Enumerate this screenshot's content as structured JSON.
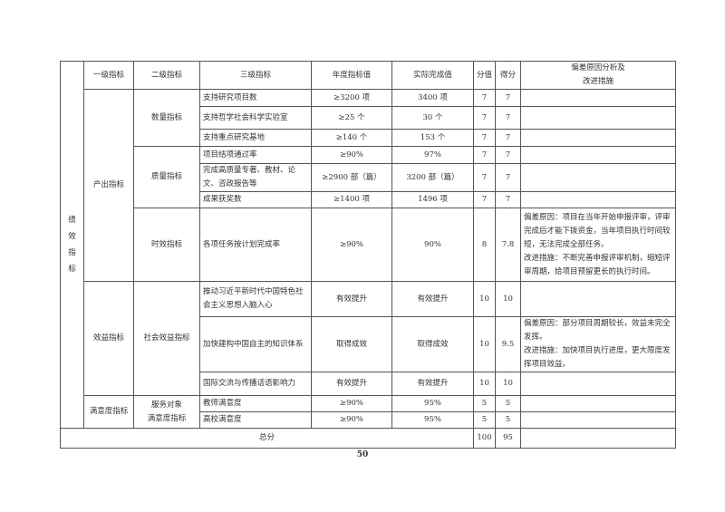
{
  "header": {
    "c1": "一级指标",
    "c2": "二级指标",
    "c3": "三级指标",
    "c4": "年度指标值",
    "c5": "实际完成值",
    "c6": "分值",
    "c7": "得分",
    "c8a": "偏差原因分析及",
    "c8b": "改进措施"
  },
  "side_label": [
    "绩",
    "效",
    "指",
    "标"
  ],
  "groups": {
    "output": "产出指标",
    "benefit": "效益指标",
    "satisfaction": "满意度指标"
  },
  "subgroups": {
    "quantity": "数量指标",
    "quality": "质量指标",
    "timeliness": "时效指标",
    "social": "社会效益指标",
    "service_a": "服务对象",
    "service_b": "满意度指标"
  },
  "rows": [
    {
      "name": "支持研究项目数",
      "target": "≥3200 项",
      "actual": "3400 项",
      "weight": "7",
      "score": "7",
      "note": ""
    },
    {
      "name": "支持哲学社会科学实验室",
      "target": "≥25 个",
      "actual": "30 个",
      "weight": "7",
      "score": "7",
      "note": ""
    },
    {
      "name": "支持重点研究基地",
      "target": "≥140 个",
      "actual": "153 个",
      "weight": "7",
      "score": "7",
      "note": ""
    },
    {
      "name": "项目结项通过率",
      "target": "≥90%",
      "actual": "97%",
      "weight": "7",
      "score": "7",
      "note": ""
    },
    {
      "name": "完成高质量专著、教材、论文、咨政报告等",
      "target": "≥2900 部（篇）",
      "actual": "3200 部（篇）",
      "weight": "7",
      "score": "7",
      "note": ""
    },
    {
      "name": "成果获奖数",
      "target": "≥1400 项",
      "actual": "1496 项",
      "weight": "7",
      "score": "7",
      "note": ""
    },
    {
      "name": "各项任务按计划完成率",
      "target": "≥90%",
      "actual": "90%",
      "weight": "8",
      "score": "7.8",
      "note": "偏差原因：项目在当年开始申报评审，评审完成后才能下拨资金，当年项目执行时间较短，无法完成全部任务。",
      "note2": "改进措施：不断完善申报评审机制，缩短评审周期，给项目预留更长的执行时间。"
    },
    {
      "name": "推动习近平新时代中国特色社会主义思想入脑入心",
      "target": "有效提升",
      "actual": "有效提升",
      "weight": "10",
      "score": "10",
      "note": ""
    },
    {
      "name": "加快建构中国自主的知识体系",
      "target": "取得成效",
      "actual": "取得成效",
      "weight": "10",
      "score": "9.5",
      "note": "偏差原因：部分项目周期较长，效益未完全发挥。",
      "note2": "改进措施：加快项目执行进度，更大限度发挥项目效益。"
    },
    {
      "name": "国际交流与传播话语影响力",
      "target": "有效提升",
      "actual": "有效提升",
      "weight": "10",
      "score": "10",
      "note": ""
    },
    {
      "name": "教师满意度",
      "target": "≥90%",
      "actual": "95%",
      "weight": "5",
      "score": "5",
      "note": ""
    },
    {
      "name": "高校满意度",
      "target": "≥90%",
      "actual": "95%",
      "weight": "5",
      "score": "5",
      "note": ""
    }
  ],
  "total": {
    "label": "总分",
    "weight": "100",
    "score": "95"
  },
  "page_number": "50"
}
